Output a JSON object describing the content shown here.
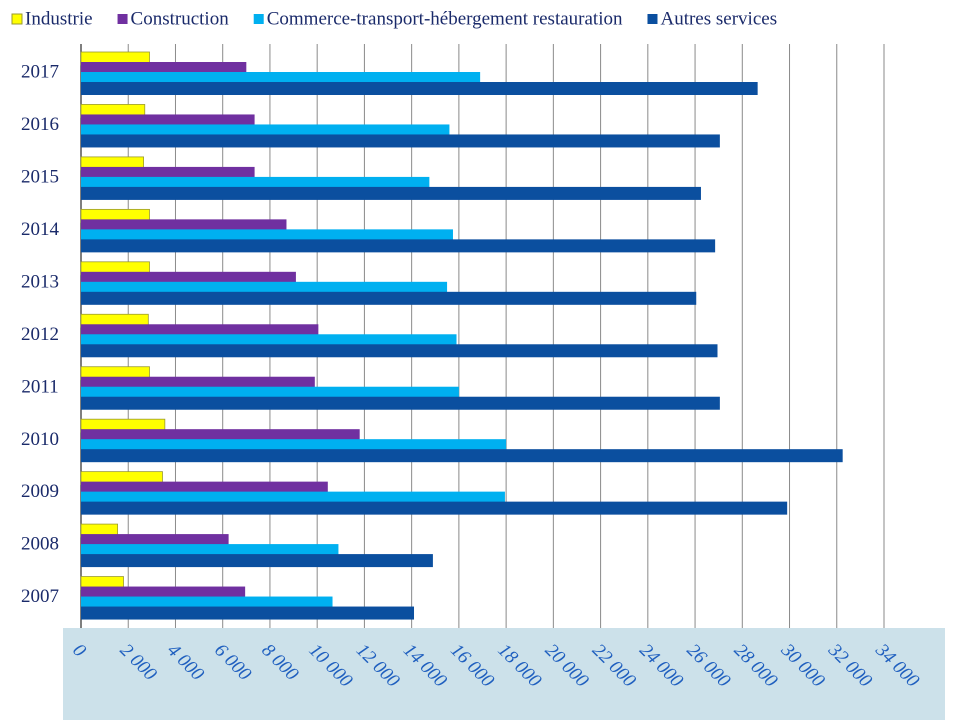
{
  "chart_data": {
    "type": "hbar",
    "categories": [
      "2007",
      "2008",
      "2009",
      "2010",
      "2011",
      "2012",
      "2013",
      "2014",
      "2015",
      "2016",
      "2017"
    ],
    "series": [
      {
        "name": "Industrie",
        "color": "#ffff00",
        "values": [
          1800,
          1550,
          3450,
          3550,
          2900,
          2850,
          2900,
          2900,
          2650,
          2700,
          2900
        ]
      },
      {
        "name": "Construction",
        "color": "#7030a0",
        "values": [
          6950,
          6250,
          10450,
          11800,
          9900,
          10050,
          9100,
          8700,
          7350,
          7350,
          7000
        ]
      },
      {
        "name": "Commerce-transport-hébergement restauration",
        "color": "#00b0f0",
        "values": [
          10650,
          10900,
          17950,
          18000,
          16000,
          15900,
          15500,
          15750,
          14750,
          15600,
          16900
        ]
      },
      {
        "name": "Autres services",
        "color": "#0b4f9f",
        "values": [
          14100,
          14900,
          29900,
          32250,
          27050,
          26950,
          26050,
          26850,
          26250,
          27050,
          28650
        ]
      }
    ],
    "xlim": [
      0,
      34000
    ],
    "xticks": [
      0,
      {
        "value": 2000,
        "label": "2 000"
      },
      {
        "value": 4000,
        "label": "4 000"
      },
      {
        "value": 6000,
        "label": "6 000"
      },
      {
        "value": 8000,
        "label": "8 000"
      },
      {
        "value": 10000,
        "label": "10 000"
      },
      {
        "value": 12000,
        "label": "12 000"
      },
      {
        "value": 14000,
        "label": "14 000"
      },
      {
        "value": 16000,
        "label": "16 000"
      },
      {
        "value": 18000,
        "label": "18 000"
      },
      {
        "value": 20000,
        "label": "20 000"
      },
      {
        "value": 22000,
        "label": "22 000"
      },
      {
        "value": 24000,
        "label": "24 000"
      },
      {
        "value": 26000,
        "label": "26 000"
      },
      {
        "value": 28000,
        "label": "28 000"
      },
      {
        "value": 30000,
        "label": "30 000"
      },
      {
        "value": 32000,
        "label": "32 000"
      },
      {
        "value": 34000,
        "label": "34 000"
      }
    ],
    "grid": true,
    "legend": "top"
  }
}
